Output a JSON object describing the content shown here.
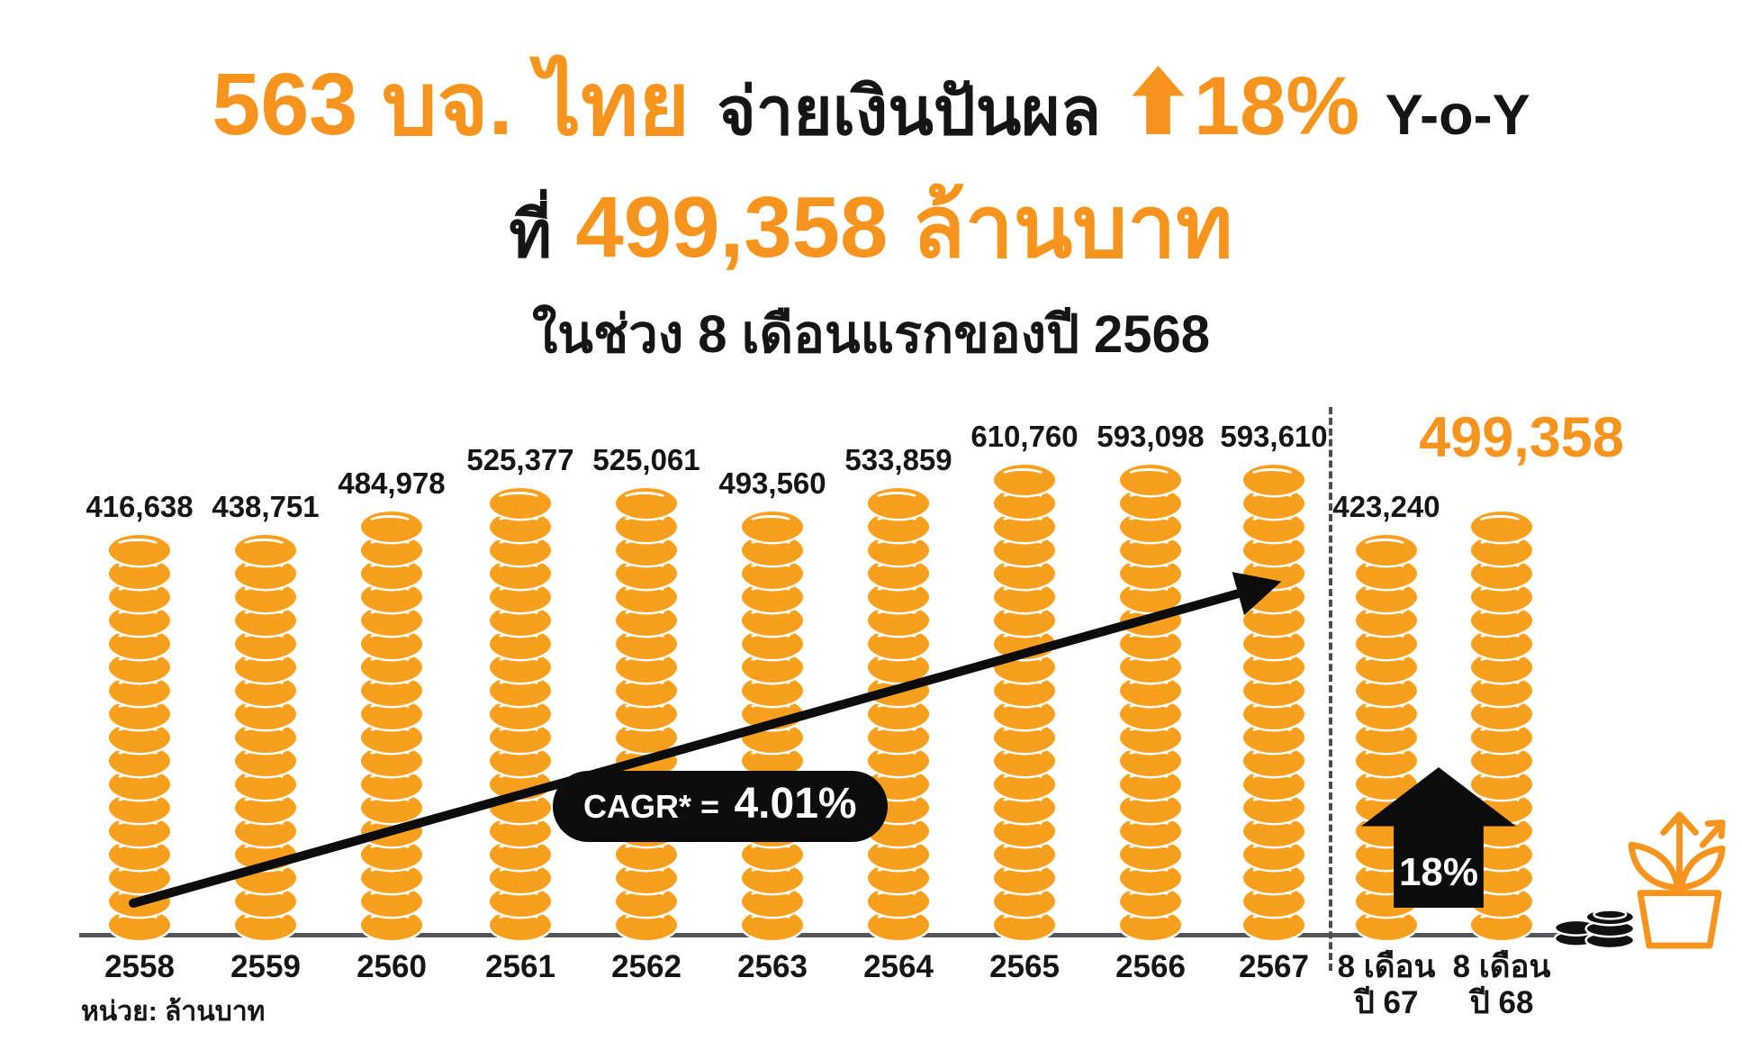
{
  "colors": {
    "orange": "#F7941E",
    "coin_orange": "#F8A01E",
    "black": "#151515",
    "axis_gray": "#54565A",
    "pill_black": "#0C0C0C"
  },
  "title": {
    "highlight": "563 บจ. ไทย",
    "action": "จ่ายเงินปันผล",
    "growth_pct": "18%",
    "yoy": "Y-o-Y",
    "line2_prefix": "ที่",
    "line2_amount": "499,358 ล้านบาท",
    "line3": "ในช่วง 8 เดือนแรกของปี 2568"
  },
  "icons": {
    "title_arrow": "up-arrow",
    "growth_badge": "block-arrow-up",
    "right_decoration": "plant-growth-with-coins"
  },
  "chart_data": {
    "type": "bar",
    "unit_label": "หน่วย: ล้านบาท",
    "categories": [
      "2558",
      "2559",
      "2560",
      "2561",
      "2562",
      "2563",
      "2564",
      "2565",
      "2566",
      "2567",
      "8 เดือน\nปี 67",
      "8 เดือน\nปี 68"
    ],
    "values": [
      416638,
      438751,
      484978,
      525377,
      525061,
      493560,
      533859,
      610760,
      593098,
      593610,
      423240,
      499358
    ],
    "value_labels": [
      "416,638",
      "438,751",
      "484,978",
      "525,377",
      "525,061",
      "493,560",
      "533,859",
      "610,760",
      "593,098",
      "593,610",
      "423,240",
      "499,358"
    ],
    "highlight_index": 11,
    "separator_after_index": 9,
    "legend_position": "none",
    "grid": false,
    "annotations": {
      "cagr_prefix": "CAGR* =",
      "cagr_value": "4.01%",
      "growth_badge": "18%",
      "highlight_value": "499,358"
    }
  }
}
